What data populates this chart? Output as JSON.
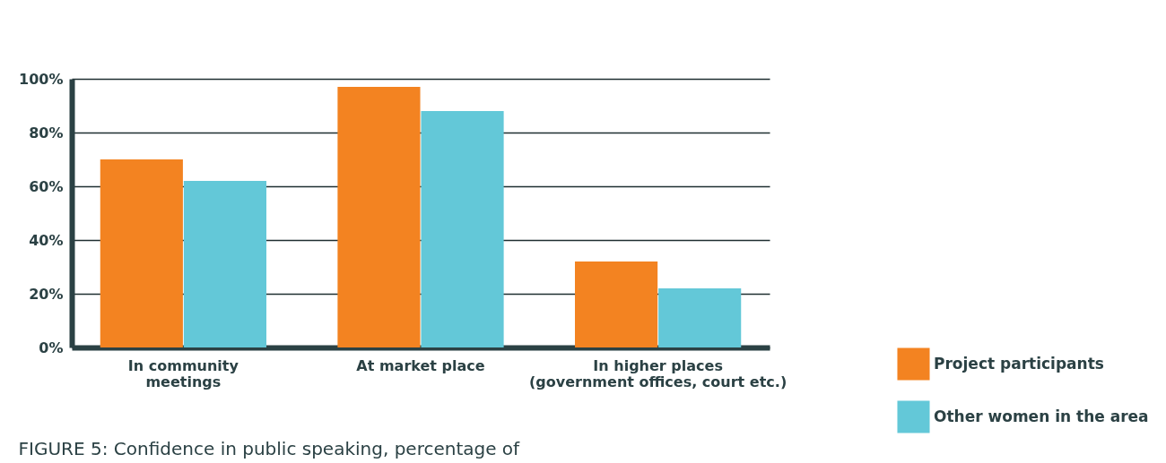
{
  "chart_data": {
    "type": "bar",
    "categories": [
      "In community\nmeetings",
      "At market place",
      "In higher places\n(government offices, court etc.)"
    ],
    "series": [
      {
        "name": "Project participants",
        "color": "#f38321",
        "values": [
          70,
          97,
          32
        ]
      },
      {
        "name": "Other women in the area",
        "color": "#63c8d8",
        "values": [
          62,
          88,
          22
        ]
      }
    ],
    "ylim": [
      0,
      100
    ],
    "yticks": [
      {
        "value": 0,
        "label": "0%"
      },
      {
        "value": 20,
        "label": "20%"
      },
      {
        "value": 40,
        "label": "40%"
      },
      {
        "value": 60,
        "label": "60%"
      },
      {
        "value": 80,
        "label": "80%"
      },
      {
        "value": 100,
        "label": "100%"
      }
    ],
    "grid": "y",
    "legend": "bottom right",
    "annotations": [
      "FIGURE 5: Confidence in public speaking, percentage of"
    ]
  }
}
